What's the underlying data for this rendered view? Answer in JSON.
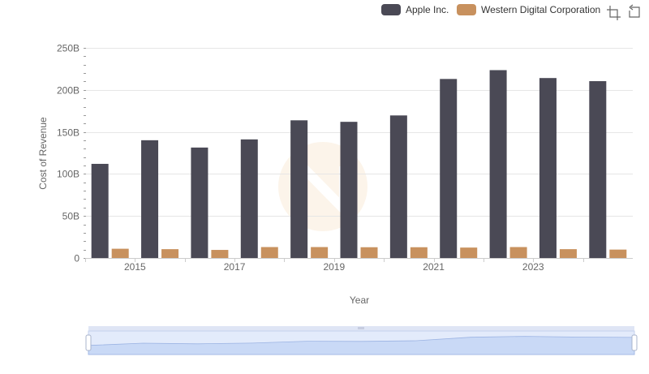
{
  "chart_data": {
    "type": "bar",
    "categories": [
      "2014",
      "2015",
      "2016",
      "2017",
      "2018",
      "2019",
      "2020",
      "2021",
      "2022",
      "2023",
      "2024"
    ],
    "x_tick_labels": [
      "2015",
      "2017",
      "2019",
      "2021",
      "2023"
    ],
    "series": [
      {
        "name": "Apple Inc.",
        "color": "#4a4955",
        "values": [
          112,
          140.1,
          131.4,
          141.1,
          163.8,
          162.0,
          169.6,
          213.0,
          223.5,
          214.1,
          210.4
        ]
      },
      {
        "name": "Western Digital Corporation",
        "color": "#c8915e",
        "values": [
          11.0,
          10.5,
          9.6,
          13.0,
          13.0,
          12.8,
          12.8,
          12.4,
          13.0,
          10.5,
          10.0
        ]
      }
    ],
    "y_ticks": [
      "0",
      "50B",
      "100B",
      "150B",
      "200B",
      "250B"
    ],
    "ylim": [
      0,
      250
    ],
    "xlabel": "Year",
    "ylabel": "Cost of Revenue",
    "legend_position": "top-right",
    "grid": true
  },
  "toolbar": {
    "zoom_icon": "crop-zoom-icon",
    "reset_icon": "undo-icon"
  },
  "navigator": {
    "series": "Apple Inc.",
    "handle_icon": "grip-icon"
  }
}
